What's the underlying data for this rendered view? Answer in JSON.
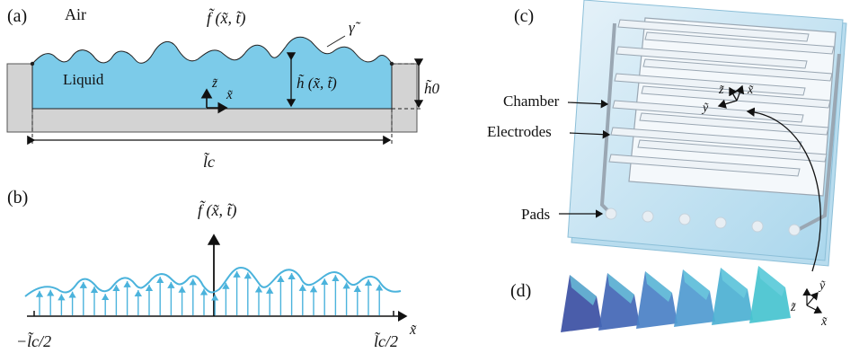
{
  "panel_a": {
    "tag": "(a)",
    "air_label": "Air",
    "liquid_label": "Liquid",
    "surface_label": "f̃ (x̃, t̃)",
    "height_label": "h̃ (x̃, t̃)",
    "gamma_label": "γ̃",
    "h0_label": "h̃0",
    "lc_label": "l̃c",
    "z_axis": "z̃",
    "x_axis": "x̃"
  },
  "panel_b": {
    "tag": "(b)",
    "yaxis_label": "f̃ (x̃, t̃)",
    "xaxis_label": "x̃",
    "left_tick": "−l̃c/2",
    "right_tick": "l̃c/2"
  },
  "panel_c": {
    "tag": "(c)",
    "chamber_label": "Chamber",
    "electrodes_label": "Electrodes",
    "pads_label": "Pads",
    "axes": {
      "z": "z̃",
      "x": "x̃",
      "y": "ỹ"
    }
  },
  "panel_d": {
    "tag": "(d)",
    "axes": {
      "z": "z̃",
      "y": "ỹ",
      "x": "x̃"
    }
  },
  "colors": {
    "liquid": "#7ccbe9",
    "substrate": "#d3d3d3",
    "arrow": "#4bb3dc",
    "chip": "#cfe6f3",
    "surface_dark": "#3a55a8",
    "surface_light": "#49b8d4"
  }
}
